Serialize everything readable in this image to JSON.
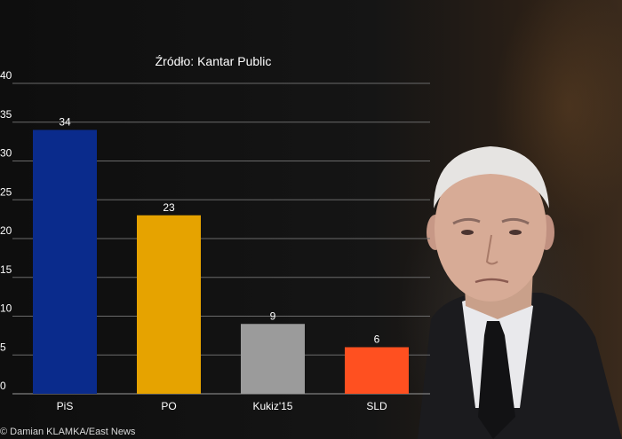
{
  "chart_data": {
    "type": "bar",
    "title": "Źródło: Kantar Public",
    "categories": [
      "PiS",
      "PO",
      "Kukiz'15",
      "SLD"
    ],
    "values": [
      34,
      23,
      9,
      6
    ],
    "colors": [
      "#0a2b8c",
      "#e6a300",
      "#9b9b9b",
      "#ff5020"
    ],
    "ylim": [
      0,
      40
    ],
    "yticks": [
      "0",
      "5",
      "10",
      "15",
      "20",
      "25",
      "30",
      "35",
      "40"
    ],
    "grid": true,
    "xlabel": "",
    "ylabel": ""
  },
  "credit": "© Damian KLAMKA/East News"
}
